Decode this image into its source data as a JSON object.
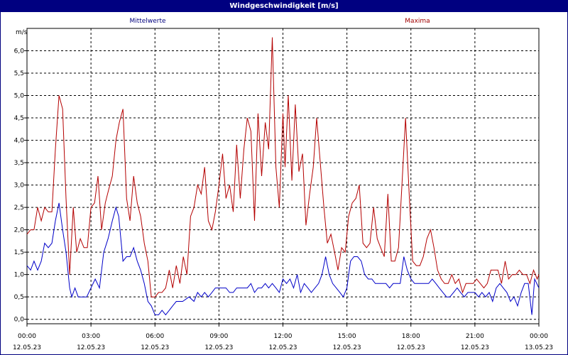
{
  "window": {
    "title": "Windgeschwindigkeit [m/s]"
  },
  "colors": {
    "title_bar": "#000080",
    "mean_series": "#0000c8",
    "max_series": "#b40000",
    "grid": "#000000"
  },
  "chart_data": {
    "type": "line",
    "title": "Windgeschwindigkeit [m/s]",
    "ylabel": "m/s",
    "xlabel": "",
    "ylim": [
      -0.1,
      6.5
    ],
    "y_ticks": [
      "0,0",
      "0,5",
      "1,0",
      "1,5",
      "2,0",
      "2,5",
      "3,0",
      "3,5",
      "4,0",
      "4,5",
      "5,0",
      "5,5",
      "6,0"
    ],
    "y_tick_values": [
      0,
      0.5,
      1,
      1.5,
      2,
      2.5,
      3,
      3.5,
      4,
      4.5,
      5,
      5.5,
      6
    ],
    "x_range_hours": [
      0,
      24
    ],
    "x_ticks": [
      {
        "time": "00:00",
        "date": "12.05.23"
      },
      {
        "time": "03:00",
        "date": "12.05.23"
      },
      {
        "time": "06:00",
        "date": "12.05.23"
      },
      {
        "time": "09:00",
        "date": "12.05.23"
      },
      {
        "time": "12:00",
        "date": "12.05.23"
      },
      {
        "time": "15:00",
        "date": "12.05.23"
      },
      {
        "time": "18:00",
        "date": "12.05.23"
      },
      {
        "time": "21:00",
        "date": "12.05.23"
      },
      {
        "time": "00:00",
        "date": "13.05.23"
      }
    ],
    "grid": true,
    "legend": [
      "Mittelwerte",
      "Maxima"
    ],
    "series": [
      {
        "name": "Mittelwerte",
        "color": "#0000c8",
        "points": [
          [
            0,
            1.2
          ],
          [
            0.17,
            1.1
          ],
          [
            0.33,
            1.3
          ],
          [
            0.5,
            1.1
          ],
          [
            0.67,
            1.3
          ],
          [
            0.83,
            1.7
          ],
          [
            1.0,
            1.6
          ],
          [
            1.17,
            1.7
          ],
          [
            1.33,
            2.2
          ],
          [
            1.5,
            2.6
          ],
          [
            1.67,
            2.0
          ],
          [
            1.83,
            1.5
          ],
          [
            2.0,
            0.7
          ],
          [
            2.1,
            0.5
          ],
          [
            2.25,
            0.7
          ],
          [
            2.4,
            0.5
          ],
          [
            2.6,
            0.5
          ],
          [
            2.8,
            0.5
          ],
          [
            3.0,
            0.7
          ],
          [
            3.2,
            0.9
          ],
          [
            3.4,
            0.7
          ],
          [
            3.6,
            1.5
          ],
          [
            3.8,
            1.8
          ],
          [
            4.0,
            2.2
          ],
          [
            4.17,
            2.5
          ],
          [
            4.3,
            2.3
          ],
          [
            4.5,
            1.3
          ],
          [
            4.67,
            1.4
          ],
          [
            4.83,
            1.4
          ],
          [
            5.0,
            1.6
          ],
          [
            5.17,
            1.3
          ],
          [
            5.33,
            1.1
          ],
          [
            5.5,
            0.8
          ],
          [
            5.67,
            0.4
          ],
          [
            5.83,
            0.3
          ],
          [
            6.0,
            0.1
          ],
          [
            6.17,
            0.1
          ],
          [
            6.33,
            0.2
          ],
          [
            6.5,
            0.1
          ],
          [
            6.67,
            0.2
          ],
          [
            6.83,
            0.3
          ],
          [
            7.0,
            0.4
          ],
          [
            7.3,
            0.4
          ],
          [
            7.6,
            0.5
          ],
          [
            7.83,
            0.4
          ],
          [
            8.0,
            0.6
          ],
          [
            8.17,
            0.5
          ],
          [
            8.33,
            0.6
          ],
          [
            8.5,
            0.5
          ],
          [
            8.67,
            0.6
          ],
          [
            8.83,
            0.7
          ],
          [
            9.0,
            0.7
          ],
          [
            9.33,
            0.7
          ],
          [
            9.5,
            0.6
          ],
          [
            9.67,
            0.6
          ],
          [
            9.83,
            0.7
          ],
          [
            10.0,
            0.7
          ],
          [
            10.33,
            0.7
          ],
          [
            10.5,
            0.8
          ],
          [
            10.67,
            0.6
          ],
          [
            10.83,
            0.7
          ],
          [
            11.0,
            0.7
          ],
          [
            11.17,
            0.8
          ],
          [
            11.33,
            0.7
          ],
          [
            11.5,
            0.8
          ],
          [
            11.67,
            0.7
          ],
          [
            11.83,
            0.6
          ],
          [
            12.0,
            0.9
          ],
          [
            12.17,
            0.8
          ],
          [
            12.33,
            0.9
          ],
          [
            12.5,
            0.7
          ],
          [
            12.67,
            1.0
          ],
          [
            12.83,
            0.6
          ],
          [
            13.0,
            0.8
          ],
          [
            13.17,
            0.7
          ],
          [
            13.33,
            0.6
          ],
          [
            13.5,
            0.7
          ],
          [
            13.67,
            0.8
          ],
          [
            13.83,
            1.0
          ],
          [
            14.0,
            1.4
          ],
          [
            14.17,
            1.0
          ],
          [
            14.33,
            0.8
          ],
          [
            14.5,
            0.7
          ],
          [
            14.67,
            0.6
          ],
          [
            14.83,
            0.5
          ],
          [
            15.0,
            0.7
          ],
          [
            15.17,
            1.3
          ],
          [
            15.33,
            1.4
          ],
          [
            15.5,
            1.4
          ],
          [
            15.67,
            1.3
          ],
          [
            15.83,
            1.0
          ],
          [
            16.0,
            0.9
          ],
          [
            16.17,
            0.9
          ],
          [
            16.33,
            0.8
          ],
          [
            16.5,
            0.8
          ],
          [
            16.83,
            0.8
          ],
          [
            17.0,
            0.7
          ],
          [
            17.17,
            0.8
          ],
          [
            17.33,
            0.8
          ],
          [
            17.5,
            0.8
          ],
          [
            17.67,
            1.4
          ],
          [
            17.83,
            1.1
          ],
          [
            18.0,
            0.9
          ],
          [
            18.17,
            0.8
          ],
          [
            18.5,
            0.8
          ],
          [
            18.83,
            0.8
          ],
          [
            19.0,
            0.9
          ],
          [
            19.17,
            0.8
          ],
          [
            19.33,
            0.7
          ],
          [
            19.5,
            0.6
          ],
          [
            19.67,
            0.5
          ],
          [
            19.83,
            0.5
          ],
          [
            20.0,
            0.6
          ],
          [
            20.17,
            0.7
          ],
          [
            20.33,
            0.6
          ],
          [
            20.5,
            0.5
          ],
          [
            20.67,
            0.6
          ],
          [
            20.83,
            0.6
          ],
          [
            21.0,
            0.6
          ],
          [
            21.17,
            0.5
          ],
          [
            21.33,
            0.6
          ],
          [
            21.5,
            0.5
          ],
          [
            21.67,
            0.6
          ],
          [
            21.83,
            0.4
          ],
          [
            22.0,
            0.7
          ],
          [
            22.17,
            0.8
          ],
          [
            22.33,
            0.7
          ],
          [
            22.5,
            0.6
          ],
          [
            22.67,
            0.4
          ],
          [
            22.83,
            0.5
          ],
          [
            23.0,
            0.3
          ],
          [
            23.17,
            0.6
          ],
          [
            23.33,
            0.8
          ],
          [
            23.5,
            0.8
          ],
          [
            23.67,
            0.1
          ],
          [
            23.8,
            0.9
          ],
          [
            24.0,
            0.7
          ]
        ]
      },
      {
        "name": "Maxima",
        "color": "#b40000",
        "points": [
          [
            0,
            1.9
          ],
          [
            0.17,
            2.0
          ],
          [
            0.33,
            2.0
          ],
          [
            0.5,
            2.5
          ],
          [
            0.67,
            2.2
          ],
          [
            0.83,
            2.5
          ],
          [
            1.0,
            2.4
          ],
          [
            1.17,
            2.4
          ],
          [
            1.33,
            3.8
          ],
          [
            1.5,
            5.0
          ],
          [
            1.67,
            4.7
          ],
          [
            1.83,
            2.7
          ],
          [
            2.0,
            1.0
          ],
          [
            2.17,
            2.5
          ],
          [
            2.33,
            1.5
          ],
          [
            2.5,
            1.8
          ],
          [
            2.67,
            1.6
          ],
          [
            2.83,
            1.6
          ],
          [
            3.0,
            2.5
          ],
          [
            3.17,
            2.6
          ],
          [
            3.33,
            3.2
          ],
          [
            3.5,
            2.0
          ],
          [
            3.67,
            2.6
          ],
          [
            3.83,
            2.9
          ],
          [
            4.0,
            3.2
          ],
          [
            4.17,
            4.0
          ],
          [
            4.33,
            4.4
          ],
          [
            4.5,
            4.7
          ],
          [
            4.67,
            2.7
          ],
          [
            4.83,
            2.2
          ],
          [
            5.0,
            3.2
          ],
          [
            5.17,
            2.6
          ],
          [
            5.33,
            2.3
          ],
          [
            5.5,
            1.7
          ],
          [
            5.67,
            1.3
          ],
          [
            5.83,
            0.5
          ],
          [
            6.0,
            0.5
          ],
          [
            6.17,
            0.6
          ],
          [
            6.33,
            0.6
          ],
          [
            6.5,
            0.7
          ],
          [
            6.67,
            1.1
          ],
          [
            6.83,
            0.7
          ],
          [
            7.0,
            1.2
          ],
          [
            7.17,
            0.8
          ],
          [
            7.33,
            1.4
          ],
          [
            7.5,
            1.0
          ],
          [
            7.67,
            2.3
          ],
          [
            7.83,
            2.5
          ],
          [
            8.0,
            3.0
          ],
          [
            8.17,
            2.8
          ],
          [
            8.33,
            3.4
          ],
          [
            8.5,
            2.2
          ],
          [
            8.67,
            2.0
          ],
          [
            8.83,
            2.4
          ],
          [
            9.0,
            3.0
          ],
          [
            9.17,
            3.7
          ],
          [
            9.33,
            2.7
          ],
          [
            9.5,
            3.0
          ],
          [
            9.67,
            2.4
          ],
          [
            9.83,
            3.9
          ],
          [
            10.0,
            2.7
          ],
          [
            10.17,
            3.8
          ],
          [
            10.33,
            4.5
          ],
          [
            10.5,
            4.2
          ],
          [
            10.67,
            2.2
          ],
          [
            10.83,
            4.6
          ],
          [
            11.0,
            3.2
          ],
          [
            11.17,
            4.4
          ],
          [
            11.33,
            3.8
          ],
          [
            11.5,
            6.3
          ],
          [
            11.67,
            3.4
          ],
          [
            11.83,
            2.5
          ],
          [
            12.0,
            4.6
          ],
          [
            12.1,
            3.4
          ],
          [
            12.25,
            5.0
          ],
          [
            12.42,
            3.1
          ],
          [
            12.58,
            4.8
          ],
          [
            12.75,
            3.3
          ],
          [
            12.92,
            3.7
          ],
          [
            13.08,
            2.1
          ],
          [
            13.25,
            2.8
          ],
          [
            13.42,
            3.4
          ],
          [
            13.58,
            4.5
          ],
          [
            13.75,
            3.5
          ],
          [
            13.92,
            2.5
          ],
          [
            14.08,
            1.7
          ],
          [
            14.25,
            1.9
          ],
          [
            14.42,
            1.5
          ],
          [
            14.58,
            1.1
          ],
          [
            14.75,
            1.6
          ],
          [
            14.92,
            1.5
          ],
          [
            15.08,
            2.3
          ],
          [
            15.25,
            2.6
          ],
          [
            15.42,
            2.7
          ],
          [
            15.58,
            3.0
          ],
          [
            15.75,
            1.7
          ],
          [
            15.92,
            1.6
          ],
          [
            16.08,
            1.7
          ],
          [
            16.25,
            2.5
          ],
          [
            16.42,
            1.8
          ],
          [
            16.58,
            1.6
          ],
          [
            16.75,
            1.4
          ],
          [
            16.92,
            2.8
          ],
          [
            17.08,
            1.3
          ],
          [
            17.25,
            1.3
          ],
          [
            17.42,
            1.6
          ],
          [
            17.58,
            3.0
          ],
          [
            17.75,
            4.5
          ],
          [
            17.92,
            2.8
          ],
          [
            18.08,
            1.3
          ],
          [
            18.25,
            1.2
          ],
          [
            18.42,
            1.2
          ],
          [
            18.58,
            1.4
          ],
          [
            18.75,
            1.8
          ],
          [
            18.92,
            2.0
          ],
          [
            19.08,
            1.6
          ],
          [
            19.25,
            1.1
          ],
          [
            19.42,
            0.9
          ],
          [
            19.58,
            0.8
          ],
          [
            19.75,
            0.8
          ],
          [
            19.92,
            1.0
          ],
          [
            20.08,
            0.8
          ],
          [
            20.25,
            0.9
          ],
          [
            20.42,
            0.6
          ],
          [
            20.58,
            0.8
          ],
          [
            20.75,
            0.8
          ],
          [
            20.92,
            0.8
          ],
          [
            21.08,
            0.9
          ],
          [
            21.25,
            0.8
          ],
          [
            21.42,
            0.7
          ],
          [
            21.58,
            0.8
          ],
          [
            21.75,
            1.1
          ],
          [
            21.92,
            1.1
          ],
          [
            22.08,
            1.1
          ],
          [
            22.25,
            0.8
          ],
          [
            22.42,
            1.3
          ],
          [
            22.58,
            0.9
          ],
          [
            22.75,
            1.0
          ],
          [
            22.92,
            1.0
          ],
          [
            23.08,
            1.1
          ],
          [
            23.25,
            1.0
          ],
          [
            23.42,
            1.0
          ],
          [
            23.58,
            0.8
          ],
          [
            23.75,
            1.1
          ],
          [
            23.92,
            0.9
          ],
          [
            24.0,
            1.0
          ]
        ]
      }
    ]
  }
}
